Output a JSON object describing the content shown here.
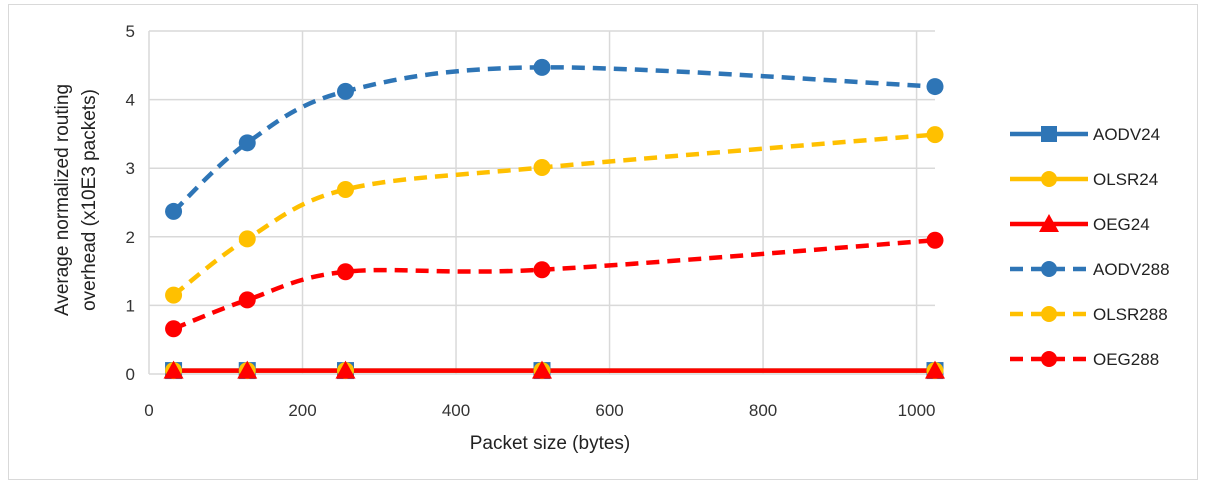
{
  "chart_data": {
    "type": "line",
    "title": "",
    "xlabel": "Packet size (bytes)",
    "ylabel_lines": [
      "Average  normalized routing",
      "overhead (x10E3 packets)"
    ],
    "xlim": [
      0,
      1024
    ],
    "ylim": [
      0,
      5
    ],
    "x_ticks": [
      0,
      200,
      400,
      600,
      800,
      1000
    ],
    "y_ticks": [
      0,
      1,
      2,
      3,
      4,
      5
    ],
    "grid": true,
    "legend_position": "right",
    "x": [
      32,
      128,
      256,
      512,
      1024
    ],
    "series": [
      {
        "name": "AODV24",
        "values": [
          0.05,
          0.05,
          0.05,
          0.05,
          0.05
        ],
        "color": "#2e75b6",
        "dash": "solid",
        "marker": "square"
      },
      {
        "name": "OLSR24",
        "values": [
          0.05,
          0.05,
          0.05,
          0.05,
          0.05
        ],
        "color": "#ffc000",
        "dash": "solid",
        "marker": "circle"
      },
      {
        "name": "OEG24",
        "values": [
          0.05,
          0.05,
          0.05,
          0.05,
          0.05
        ],
        "color": "#ff0000",
        "dash": "solid",
        "marker": "triangle"
      },
      {
        "name": "AODV288",
        "values": [
          2.37,
          3.37,
          4.12,
          4.47,
          4.19
        ],
        "color": "#2e75b6",
        "dash": "dashed",
        "marker": "circle"
      },
      {
        "name": "OLSR288",
        "values": [
          1.15,
          1.97,
          2.69,
          3.01,
          3.49
        ],
        "color": "#ffc000",
        "dash": "dashed",
        "marker": "circle"
      },
      {
        "name": "OEG288",
        "values": [
          0.66,
          1.08,
          1.49,
          1.52,
          1.95
        ],
        "color": "#ff0000",
        "dash": "dashed",
        "marker": "circle"
      }
    ]
  }
}
